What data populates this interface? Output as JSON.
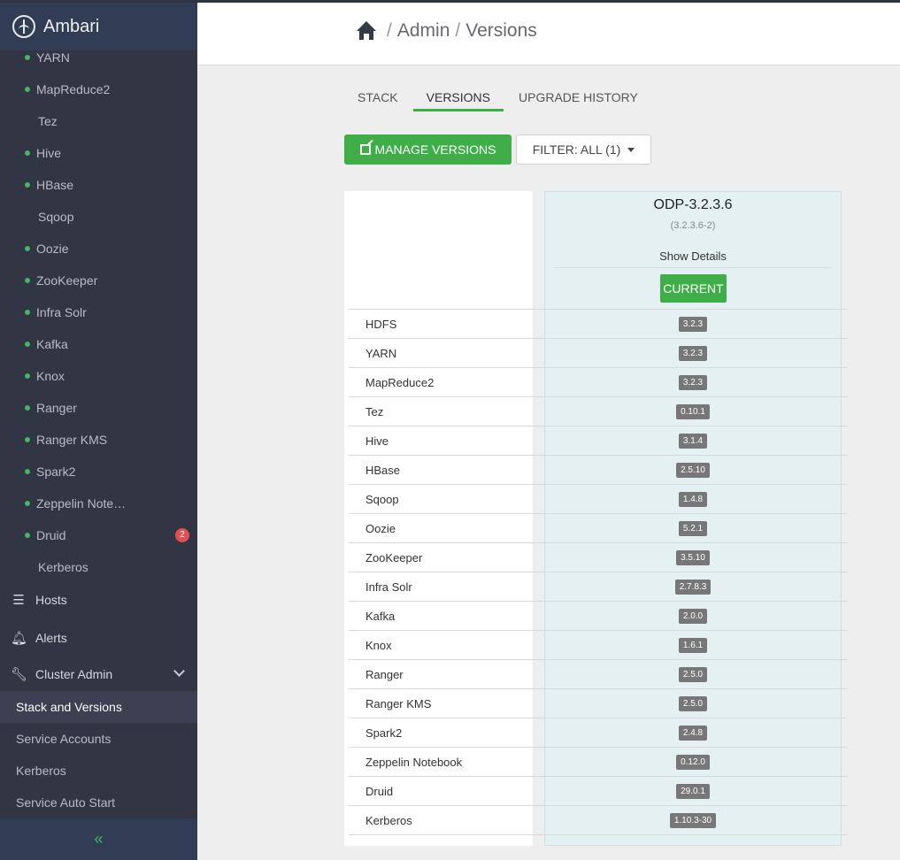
{
  "app": {
    "name": "Ambari"
  },
  "sidebar": {
    "services": [
      {
        "label": "YARN",
        "status": "green"
      },
      {
        "label": "MapReduce2",
        "status": "green"
      },
      {
        "label": "Tez",
        "status": "none"
      },
      {
        "label": "Hive",
        "status": "green"
      },
      {
        "label": "HBase",
        "status": "green"
      },
      {
        "label": "Sqoop",
        "status": "none"
      },
      {
        "label": "Oozie",
        "status": "green"
      },
      {
        "label": "ZooKeeper",
        "status": "green"
      },
      {
        "label": "Infra Solr",
        "status": "green"
      },
      {
        "label": "Kafka",
        "status": "green"
      },
      {
        "label": "Knox",
        "status": "green"
      },
      {
        "label": "Ranger",
        "status": "green"
      },
      {
        "label": "Ranger KMS",
        "status": "green"
      },
      {
        "label": "Spark2",
        "status": "green"
      },
      {
        "label": "Zeppelin Note…",
        "status": "green"
      },
      {
        "label": "Druid",
        "status": "green",
        "badge": "2"
      },
      {
        "label": "Kerberos",
        "status": "none"
      }
    ],
    "hosts_label": "Hosts",
    "alerts_label": "Alerts",
    "cluster_admin_label": "Cluster Admin",
    "cluster_admin_items": [
      {
        "label": "Stack and Versions",
        "active": true
      },
      {
        "label": "Service Accounts",
        "active": false
      },
      {
        "label": "Kerberos",
        "active": false
      },
      {
        "label": "Service Auto Start",
        "active": false
      }
    ],
    "collapse_icon": "«"
  },
  "header": {
    "crumb_admin": "Admin",
    "crumb_versions": "Versions",
    "sep": "/"
  },
  "tabs": [
    {
      "label": "STACK",
      "active": false
    },
    {
      "label": "VERSIONS",
      "active": true
    },
    {
      "label": "UPGRADE HISTORY",
      "active": false
    }
  ],
  "toolbar": {
    "manage_label": "MANAGE VERSIONS",
    "filter_label": "FILTER: ALL (1)"
  },
  "version": {
    "name": "ODP-3.2.3.6",
    "build": "(3.2.3.6-2)",
    "show_details": "Show Details",
    "status": "CURRENT"
  },
  "components": [
    {
      "name": "HDFS",
      "version": "3.2.3"
    },
    {
      "name": "YARN",
      "version": "3.2.3"
    },
    {
      "name": "MapReduce2",
      "version": "3.2.3"
    },
    {
      "name": "Tez",
      "version": "0.10.1"
    },
    {
      "name": "Hive",
      "version": "3.1.4"
    },
    {
      "name": "HBase",
      "version": "2.5.10"
    },
    {
      "name": "Sqoop",
      "version": "1.4.8"
    },
    {
      "name": "Oozie",
      "version": "5.2.1"
    },
    {
      "name": "ZooKeeper",
      "version": "3.5.10"
    },
    {
      "name": "Infra Solr",
      "version": "2.7.8.3"
    },
    {
      "name": "Kafka",
      "version": "2.0.0"
    },
    {
      "name": "Knox",
      "version": "1.6.1"
    },
    {
      "name": "Ranger",
      "version": "2.5.0"
    },
    {
      "name": "Ranger KMS",
      "version": "2.5.0"
    },
    {
      "name": "Spark2",
      "version": "2.4.8"
    },
    {
      "name": "Zeppelin Notebook",
      "version": "0.12.0"
    },
    {
      "name": "Druid",
      "version": "29.0.1"
    },
    {
      "name": "Kerberos",
      "version": "1.10.3-30"
    }
  ],
  "colors": {
    "accent_green": "#3fae49",
    "status_green": "#3fb76a",
    "badge_red": "#e05050",
    "sidebar_bg": "#323544"
  }
}
